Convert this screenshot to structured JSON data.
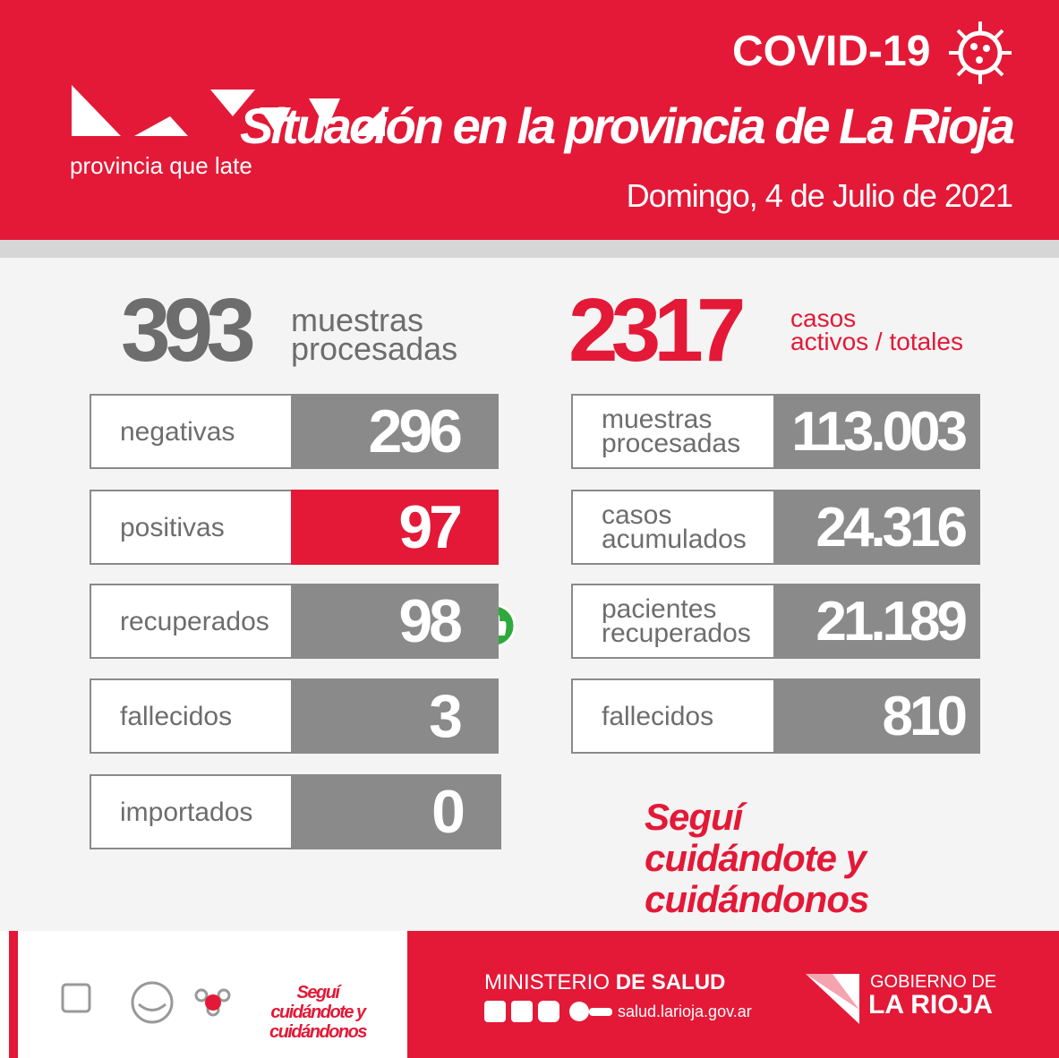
{
  "header": {
    "logo_tagline": "provincia que late",
    "badge": "COVID-19",
    "title": "Situación en la provincia de La Rioja",
    "date": "Domingo, 4 de Julio de 2021"
  },
  "daily": {
    "total": "393",
    "total_label": "muestras procesadas",
    "rows": [
      [
        "negativas",
        "296"
      ],
      [
        "positivas",
        "97"
      ],
      [
        "recuperados",
        "98"
      ],
      [
        "fallecidos",
        "3"
      ],
      [
        "importados",
        "0"
      ]
    ]
  },
  "cumulative": {
    "total": "2317",
    "total_label_1": "casos",
    "total_label_2": "activos / totales",
    "rows": [
      [
        "muestras procesadas",
        "113.003"
      ],
      [
        "casos acumulados",
        "24.316"
      ],
      [
        "pacientes recuperados",
        "21.189"
      ],
      [
        "fallecidos",
        "810"
      ]
    ]
  },
  "slogan": "Seguí cuidándote y cuidándonos",
  "footer": {
    "slogan": "Seguí cuidándote y cuidándonos",
    "ministry_1": "MINISTERIO",
    "ministry_2": "DE SALUD",
    "website": "salud.larioja.gov.ar",
    "gov_1": "GOBIERNO DE",
    "gov_2": "LA RIOJA"
  }
}
